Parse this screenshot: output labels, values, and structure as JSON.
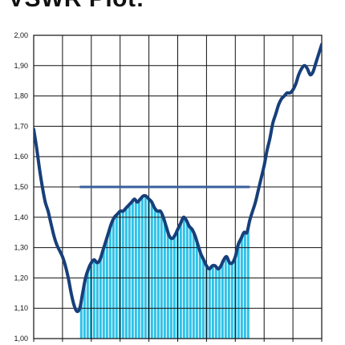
{
  "title": "VSWR Plot:",
  "colors": {
    "curve": "#173f7a",
    "threshold": "#3a5f9c",
    "fill": "#2ec2e8",
    "fill_stripe": "#ffffff",
    "grid": "#111111"
  },
  "chart_data": {
    "type": "line",
    "title": "VSWR Plot:",
    "xlabel": "",
    "ylabel": "",
    "ylim": [
      1.0,
      2.0
    ],
    "xlim": [
      0,
      10
    ],
    "grid": true,
    "ytick_labels": [
      "2,00",
      "1,90",
      "1,80",
      "1,70",
      "1,60",
      "1,50",
      "1,40",
      "1,30",
      "1,20",
      "1,10",
      "1,00"
    ],
    "ytick_values": [
      2.0,
      1.9,
      1.8,
      1.7,
      1.6,
      1.5,
      1.4,
      1.3,
      1.2,
      1.1,
      1.0
    ],
    "series": [
      {
        "x": [
          0,
          0.1,
          0.2,
          0.3,
          0.4,
          0.5,
          0.6,
          0.7,
          0.8,
          0.9,
          1.0,
          1.1,
          1.2,
          1.3,
          1.4,
          1.5,
          1.6,
          1.7,
          1.8,
          1.9,
          2.0,
          2.1,
          2.2,
          2.3,
          2.4,
          2.5,
          2.6,
          2.7,
          2.8,
          2.9,
          3.0,
          3.1,
          3.2,
          3.3,
          3.4,
          3.5,
          3.6,
          3.7,
          3.8,
          3.9,
          4.0,
          4.1,
          4.2,
          4.3,
          4.4,
          4.5,
          4.6,
          4.7,
          4.8,
          4.9,
          5.0,
          5.1,
          5.2,
          5.3,
          5.4,
          5.5,
          5.6,
          5.7,
          5.8,
          5.9,
          6.0,
          6.1,
          6.2,
          6.3,
          6.4,
          6.5,
          6.6,
          6.7,
          6.8,
          6.9,
          7.0,
          7.1,
          7.2,
          7.3,
          7.4,
          7.5,
          7.6,
          7.7,
          7.8,
          7.9,
          8.0,
          8.1,
          8.2,
          8.3,
          8.4,
          8.5,
          8.6,
          8.7,
          8.8,
          8.9,
          9.0,
          9.1,
          9.2,
          9.3,
          9.4,
          9.5,
          9.6,
          9.7,
          9.8,
          9.9,
          10.0
        ],
        "values": [
          1.69,
          1.63,
          1.56,
          1.5,
          1.45,
          1.42,
          1.38,
          1.34,
          1.31,
          1.29,
          1.27,
          1.24,
          1.2,
          1.15,
          1.11,
          1.09,
          1.1,
          1.15,
          1.2,
          1.23,
          1.25,
          1.26,
          1.25,
          1.26,
          1.29,
          1.32,
          1.35,
          1.38,
          1.4,
          1.41,
          1.42,
          1.42,
          1.43,
          1.44,
          1.45,
          1.46,
          1.45,
          1.46,
          1.47,
          1.47,
          1.46,
          1.45,
          1.43,
          1.42,
          1.42,
          1.4,
          1.37,
          1.34,
          1.33,
          1.34,
          1.36,
          1.38,
          1.4,
          1.39,
          1.37,
          1.36,
          1.34,
          1.31,
          1.28,
          1.26,
          1.24,
          1.23,
          1.24,
          1.24,
          1.23,
          1.24,
          1.26,
          1.27,
          1.25,
          1.25,
          1.27,
          1.31,
          1.33,
          1.35,
          1.35,
          1.39,
          1.42,
          1.45,
          1.49,
          1.53,
          1.57,
          1.62,
          1.66,
          1.71,
          1.74,
          1.77,
          1.79,
          1.8,
          1.81,
          1.81,
          1.82,
          1.84,
          1.87,
          1.89,
          1.9,
          1.89,
          1.87,
          1.88,
          1.91,
          1.94,
          1.97
        ]
      }
    ],
    "threshold": {
      "value": 1.5,
      "x_start": 1.6,
      "x_end": 7.5
    },
    "filled_band": {
      "x_start": 1.6,
      "x_end": 7.5
    }
  }
}
